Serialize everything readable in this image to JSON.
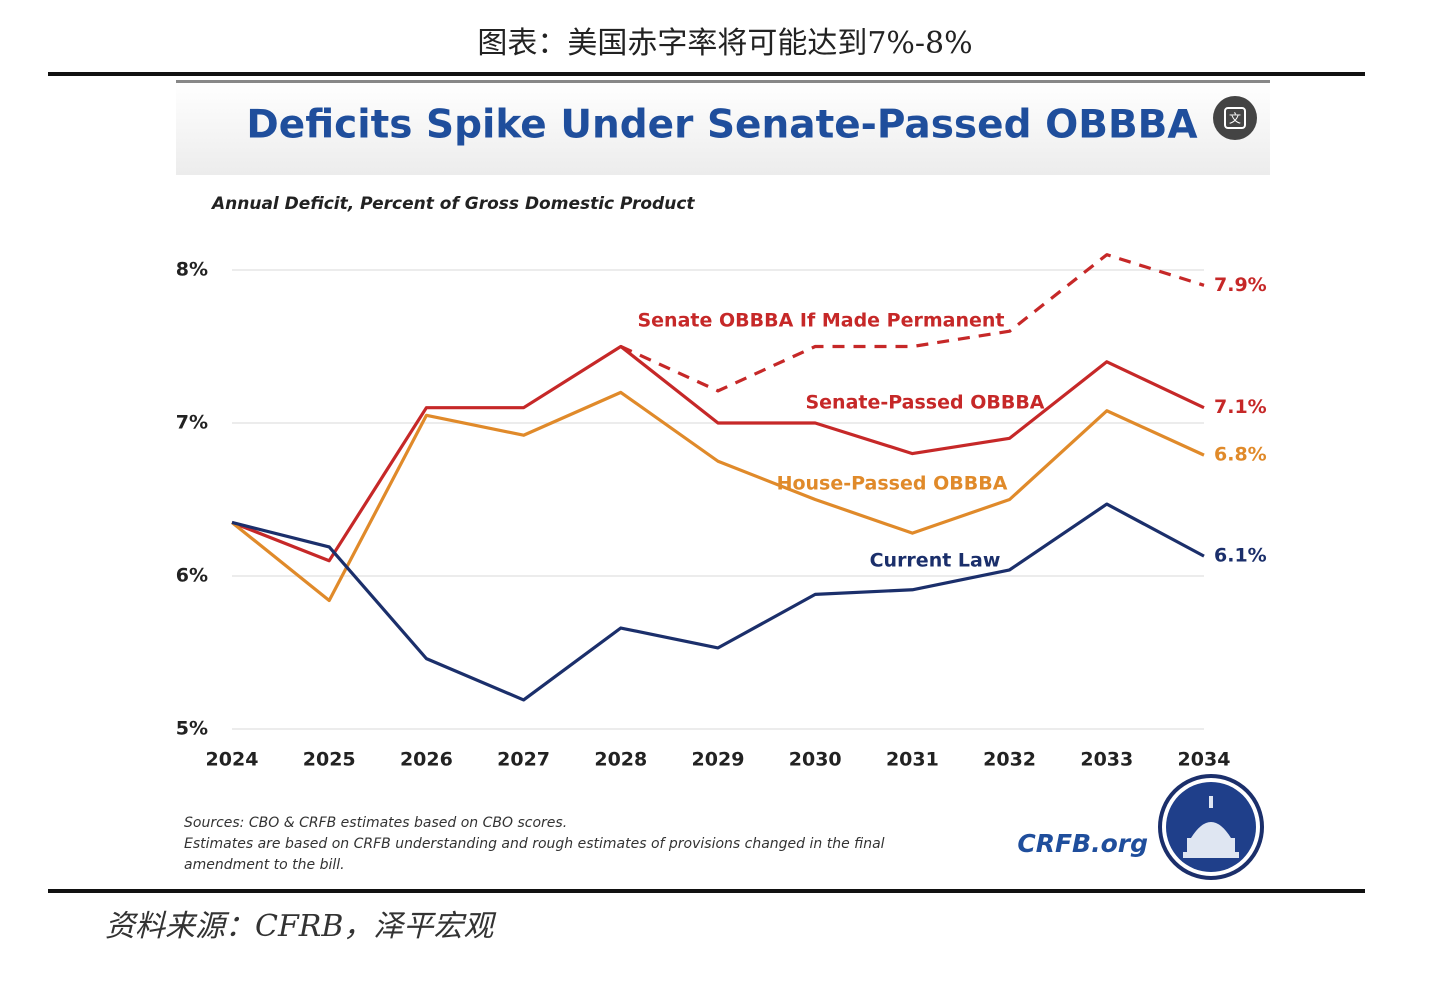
{
  "caption": "图表：美国赤字率将可能达到7%-8%",
  "source": "资料来源：CFRB，泽平宏观",
  "chart_data": {
    "type": "line",
    "title": "Deficits Spike Under Senate-Passed OBBBA",
    "subtitle": "Annual Deficit, Percent of Gross Domestic Product",
    "categories": [
      "2024",
      "2025",
      "2026",
      "2027",
      "2028",
      "2029",
      "2030",
      "2031",
      "2032",
      "2033",
      "2034"
    ],
    "ylim": [
      5,
      8.2
    ],
    "yticks": [
      {
        "value": 5,
        "label": "5%"
      },
      {
        "value": 6,
        "label": "6%"
      },
      {
        "value": 7,
        "label": "7%"
      },
      {
        "value": 8,
        "label": "8%"
      }
    ],
    "grid": true,
    "series": [
      {
        "name": "Senate OBBBA If Made Permanent",
        "color": "#c62828",
        "dash": true,
        "values": [
          null,
          null,
          null,
          null,
          7.5,
          7.21,
          7.5,
          7.5,
          7.6,
          8.1,
          7.9
        ],
        "value_labels": [
          null,
          null,
          null,
          null,
          null,
          null,
          null,
          null,
          null,
          null,
          "7.9%"
        ]
      },
      {
        "name": "Senate-Passed OBBBA",
        "color": "#c62828",
        "dash": false,
        "values": [
          6.35,
          6.1,
          7.1,
          7.1,
          7.5,
          7.0,
          7.0,
          6.8,
          6.9,
          7.4,
          7.1
        ],
        "value_labels": [
          null,
          null,
          null,
          null,
          null,
          null,
          null,
          null,
          null,
          null,
          "7.1%"
        ]
      },
      {
        "name": "House-Passed OBBBA",
        "color": "#e08a2a",
        "dash": false,
        "values": [
          6.35,
          5.84,
          7.05,
          6.92,
          7.2,
          6.75,
          6.5,
          6.28,
          6.5,
          7.08,
          6.79
        ],
        "value_labels": [
          null,
          null,
          null,
          null,
          null,
          null,
          null,
          null,
          null,
          null,
          "6.8%"
        ]
      },
      {
        "name": "Current Law",
        "color": "#1b2f6b",
        "dash": false,
        "values": [
          6.35,
          6.19,
          5.46,
          5.19,
          5.66,
          5.53,
          5.88,
          5.91,
          6.04,
          6.47,
          6.13
        ],
        "value_labels": [
          null,
          null,
          null,
          null,
          null,
          null,
          null,
          null,
          null,
          null,
          "6.1%"
        ]
      }
    ],
    "notes": [
      "Sources: CBO & CRFB estimates based on CBO scores.",
      "Estimates are based on CRFB understanding and rough estimates of provisions changed in the final",
      "amendment to the bill."
    ],
    "brand": "CRFB.org"
  }
}
